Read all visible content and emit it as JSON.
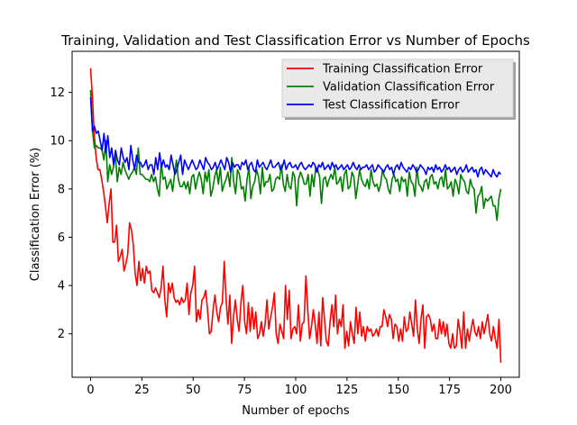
{
  "chart_data": {
    "type": "line",
    "title": "Training, Validation and Test Classification Error vs Number of Epochs",
    "xlabel": "Number of epochs",
    "ylabel": "Classification Error (%)",
    "xlim": [
      -9,
      209
    ],
    "ylim": [
      0.2,
      13.7
    ],
    "xticks": [
      0,
      25,
      50,
      75,
      100,
      125,
      150,
      175,
      200
    ],
    "yticks": [
      2,
      4,
      6,
      8,
      10,
      12
    ],
    "legend_position": "top-right",
    "grid": false,
    "series": [
      {
        "name": "Training Classification Error",
        "color": "#ff0000",
        "values": [
          13.0,
          11.8,
          10.2,
          9.3,
          8.8,
          8.8,
          8.4,
          7.9,
          7.3,
          6.6,
          7.4,
          8.0,
          5.8,
          5.8,
          6.5,
          5.0,
          5.2,
          5.5,
          4.6,
          4.9,
          5.3,
          6.6,
          6.3,
          5.7,
          4.5,
          4.0,
          5.0,
          4.2,
          4.7,
          4.1,
          4.8,
          4.5,
          4.6,
          3.8,
          3.7,
          3.9,
          3.7,
          3.5,
          3.9,
          4.8,
          3.4,
          2.7,
          4.1,
          3.7,
          4.1,
          3.5,
          3.3,
          3.4,
          3.2,
          3.5,
          3.3,
          3.4,
          4.1,
          2.8,
          3.7,
          4.0,
          4.8,
          2.5,
          3.0,
          2.6,
          3.4,
          3.5,
          3.8,
          3.0,
          2.0,
          2.1,
          3.0,
          3.6,
          2.9,
          2.5,
          3.1,
          3.3,
          5.0,
          3.4,
          2.4,
          3.6,
          1.6,
          2.7,
          3.4,
          2.6,
          2.1,
          3.3,
          4.0,
          2.5,
          2.0,
          3.3,
          2.1,
          3.1,
          2.2,
          2.9,
          1.8,
          2.0,
          2.5,
          1.9,
          2.4,
          3.4,
          2.2,
          2.7,
          3.1,
          3.7,
          2.0,
          1.6,
          2.4,
          2.1,
          1.8,
          4.0,
          2.6,
          3.8,
          1.8,
          2.2,
          2.3,
          2.0,
          3.2,
          1.7,
          2.4,
          2.5,
          4.4,
          3.0,
          1.8,
          2.3,
          3.0,
          2.4,
          1.6,
          2.9,
          1.5,
          3.5,
          2.6,
          1.7,
          1.5,
          2.5,
          3.2,
          2.3,
          3.6,
          2.0,
          2.6,
          2.3,
          3.2,
          1.4,
          2.1,
          1.5,
          2.5,
          2.0,
          1.6,
          3.1,
          2.0,
          2.9,
          1.9,
          2.3,
          1.7,
          2.3,
          2.1,
          2.2,
          1.9,
          2.0,
          2.2,
          1.9,
          2.3,
          2.3,
          3.0,
          2.7,
          2.3,
          2.8,
          2.6,
          1.8,
          2.4,
          2.3,
          1.7,
          2.2,
          1.7,
          2.7,
          2.1,
          2.2,
          2.9,
          2.4,
          1.9,
          3.4,
          2.2,
          1.6,
          2.6,
          3.2,
          1.4,
          2.7,
          2.8,
          2.6,
          2.1,
          2.4,
          1.8,
          1.8,
          2.6,
          2.0,
          2.5,
          1.9,
          2.4,
          1.6,
          1.4,
          2.0,
          1.4,
          1.5,
          2.6,
          2.1,
          1.4,
          2.9,
          1.4,
          2.2,
          1.7,
          2.2,
          2.6,
          2.1,
          1.9,
          2.3,
          1.8,
          2.5,
          2.0,
          2.4,
          2.8,
          2.0,
          1.7,
          2.3,
          1.8,
          1.4,
          2.6,
          0.8
        ]
      },
      {
        "name": "Validation Classification Error",
        "color": "#008000",
        "values": [
          12.1,
          10.4,
          9.7,
          9.8,
          9.7,
          9.7,
          9.6,
          9.2,
          10.0,
          8.3,
          9.0,
          8.6,
          8.9,
          9.4,
          8.3,
          8.9,
          8.6,
          9.1,
          8.8,
          8.6,
          8.4,
          8.6,
          8.7,
          8.9,
          8.6,
          9.7,
          8.6,
          8.6,
          8.5,
          8.4,
          8.4,
          8.3,
          8.6,
          8.3,
          8.5,
          8.0,
          7.7,
          9.1,
          8.4,
          8.5,
          8.0,
          8.2,
          8.4,
          7.9,
          8.6,
          9.2,
          8.4,
          8.1,
          8.1,
          8.3,
          8.0,
          8.3,
          7.8,
          8.5,
          8.6,
          8.0,
          8.4,
          8.7,
          8.4,
          7.8,
          8.7,
          8.3,
          8.8,
          7.7,
          8.0,
          8.5,
          8.8,
          8.2,
          8.9,
          7.9,
          8.2,
          8.4,
          8.7,
          8.1,
          9.3,
          8.3,
          7.8,
          8.8,
          8.6,
          8.0,
          8.1,
          7.5,
          8.4,
          8.9,
          7.6,
          8.1,
          8.3,
          8.8,
          8.5,
          7.8,
          8.9,
          8.1,
          8.3,
          8.3,
          8.6,
          7.9,
          8.0,
          8.4,
          8.5,
          8.4,
          9.0,
          8.2,
          7.9,
          8.6,
          8.1,
          8.0,
          8.7,
          8.5,
          7.3,
          8.4,
          8.7,
          8.5,
          8.2,
          8.2,
          8.6,
          7.7,
          8.6,
          8.1,
          8.9,
          8.8,
          8.5,
          7.4,
          8.4,
          8.5,
          8.1,
          8.4,
          8.6,
          8.4,
          8.9,
          8.2,
          8.3,
          8.5,
          7.9,
          8.6,
          8.8,
          8.0,
          8.1,
          8.7,
          8.5,
          7.6,
          8.2,
          8.8,
          8.4,
          8.2,
          8.1,
          8.4,
          8.0,
          8.8,
          8.3,
          8.1,
          8.2,
          7.9,
          8.2,
          8.8,
          8.5,
          8.4,
          8.0,
          7.8,
          8.4,
          8.6,
          8.3,
          8.4,
          7.9,
          8.5,
          8.3,
          8.4,
          7.7,
          8.7,
          8.3,
          8.2,
          7.7,
          8.9,
          8.2,
          8.1,
          7.9,
          8.3,
          8.4,
          8.0,
          8.5,
          8.6,
          8.2,
          8.3,
          8.0,
          8.4,
          8.5,
          8.1,
          8.8,
          8.0,
          8.1,
          8.3,
          7.7,
          8.4,
          8.2,
          7.8,
          8.6,
          8.4,
          8.3,
          7.9,
          7.8,
          8.4,
          8.1,
          8.0,
          7.0,
          7.7,
          7.8,
          8.1,
          7.2,
          7.6,
          7.5,
          7.6,
          7.7,
          7.3,
          7.3,
          6.7,
          7.6,
          8.0
        ]
      },
      {
        "name": "Test Classification Error",
        "color": "#0000ff",
        "values": [
          11.8,
          10.4,
          10.6,
          10.3,
          10.4,
          10.0,
          9.6,
          10.3,
          9.5,
          10.2,
          9.3,
          9.7,
          9.0,
          9.6,
          9.2,
          9.0,
          9.7,
          9.3,
          9.1,
          9.3,
          8.8,
          9.8,
          9.2,
          8.8,
          9.4,
          9.1,
          9.1,
          8.9,
          9.0,
          9.2,
          8.8,
          9.0,
          9.0,
          8.6,
          9.3,
          8.8,
          9.5,
          8.9,
          9.2,
          8.9,
          9.0,
          8.8,
          9.4,
          9.0,
          8.6,
          8.8,
          9.1,
          9.4,
          8.6,
          9.2,
          9.0,
          8.8,
          9.0,
          9.2,
          9.0,
          8.8,
          8.9,
          9.2,
          9.0,
          8.8,
          9.3,
          9.1,
          9.0,
          8.8,
          8.9,
          9.1,
          8.8,
          9.0,
          9.2,
          9.0,
          8.8,
          9.3,
          9.1,
          8.7,
          9.1,
          8.9,
          9.0,
          9.0,
          8.8,
          9.1,
          9.0,
          9.2,
          8.8,
          9.0,
          9.1,
          8.8,
          8.7,
          9.2,
          8.9,
          9.0,
          9.1,
          8.9,
          8.8,
          9.0,
          9.2,
          8.9,
          8.9,
          9.0,
          9.1,
          8.8,
          8.9,
          9.2,
          8.8,
          9.0,
          9.1,
          8.9,
          8.9,
          9.0,
          8.8,
          9.0,
          9.1,
          8.9,
          8.8,
          8.9,
          9.0,
          8.9,
          9.1,
          9.0,
          8.7,
          9.0,
          8.9,
          9.1,
          8.8,
          8.9,
          9.0,
          8.8,
          9.1,
          8.9,
          9.0,
          8.8,
          8.9,
          9.0,
          8.8,
          8.9,
          9.0,
          8.8,
          8.9,
          9.1,
          8.9,
          8.8,
          9.0,
          8.8,
          8.9,
          8.9,
          9.0,
          8.8,
          8.9,
          9.0,
          8.7,
          8.8,
          9.0,
          8.9,
          8.8,
          8.7,
          8.9,
          9.0,
          8.8,
          8.9,
          8.6,
          8.9,
          9.0,
          8.8,
          9.1,
          8.9,
          8.8,
          8.7,
          8.9,
          8.8,
          9.0,
          8.9,
          8.7,
          8.8,
          9.0,
          8.9,
          8.8,
          8.6,
          8.9,
          8.8,
          8.9,
          8.7,
          9.0,
          8.8,
          8.9,
          8.7,
          8.8,
          9.0,
          8.8,
          8.9,
          8.7,
          8.8,
          8.9,
          8.6,
          8.8,
          8.9,
          8.7,
          8.8,
          9.0,
          8.7,
          8.8,
          8.9,
          8.7,
          8.8,
          8.5,
          8.8,
          8.9,
          8.6,
          8.8,
          8.7,
          8.6,
          8.5,
          8.8,
          8.6,
          8.5,
          8.7,
          8.6
        ]
      }
    ]
  }
}
